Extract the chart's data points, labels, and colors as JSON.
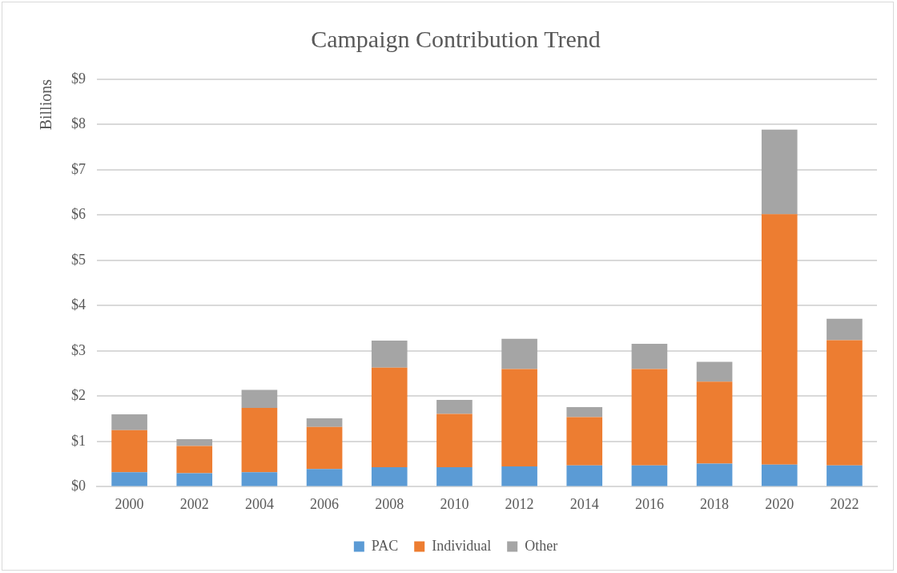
{
  "chart_data": {
    "type": "bar",
    "title": "Campaign Contribution Trend",
    "ylabel": "Billions",
    "categories": [
      "2000",
      "2002",
      "2004",
      "2006",
      "2008",
      "2010",
      "2012",
      "2014",
      "2016",
      "2018",
      "2020",
      "2022"
    ],
    "stacked": true,
    "series": [
      {
        "name": "PAC",
        "color": "#5b9bd5",
        "values": [
          0.32,
          0.3,
          0.32,
          0.39,
          0.43,
          0.43,
          0.45,
          0.47,
          0.47,
          0.51,
          0.49,
          0.47
        ]
      },
      {
        "name": "Individual",
        "color": "#ed7d31",
        "values": [
          0.93,
          0.6,
          1.42,
          0.93,
          2.2,
          1.18,
          2.15,
          1.07,
          2.13,
          1.81,
          5.53,
          2.77
        ]
      },
      {
        "name": "Other",
        "color": "#a5a5a5",
        "values": [
          0.35,
          0.15,
          0.4,
          0.19,
          0.6,
          0.31,
          0.67,
          0.22,
          0.56,
          0.44,
          1.87,
          0.47
        ]
      }
    ],
    "ylim": [
      0,
      9
    ],
    "yticks": [
      {
        "value": 0,
        "label": "$0"
      },
      {
        "value": 1,
        "label": "$1"
      },
      {
        "value": 2,
        "label": "$2"
      },
      {
        "value": 3,
        "label": "$3"
      },
      {
        "value": 4,
        "label": "$4"
      },
      {
        "value": 5,
        "label": "$5"
      },
      {
        "value": 6,
        "label": "$6"
      },
      {
        "value": 7,
        "label": "$7"
      },
      {
        "value": 8,
        "label": "$8"
      },
      {
        "value": 9,
        "label": "$9"
      }
    ],
    "grid": "y",
    "legend": "bottom"
  }
}
